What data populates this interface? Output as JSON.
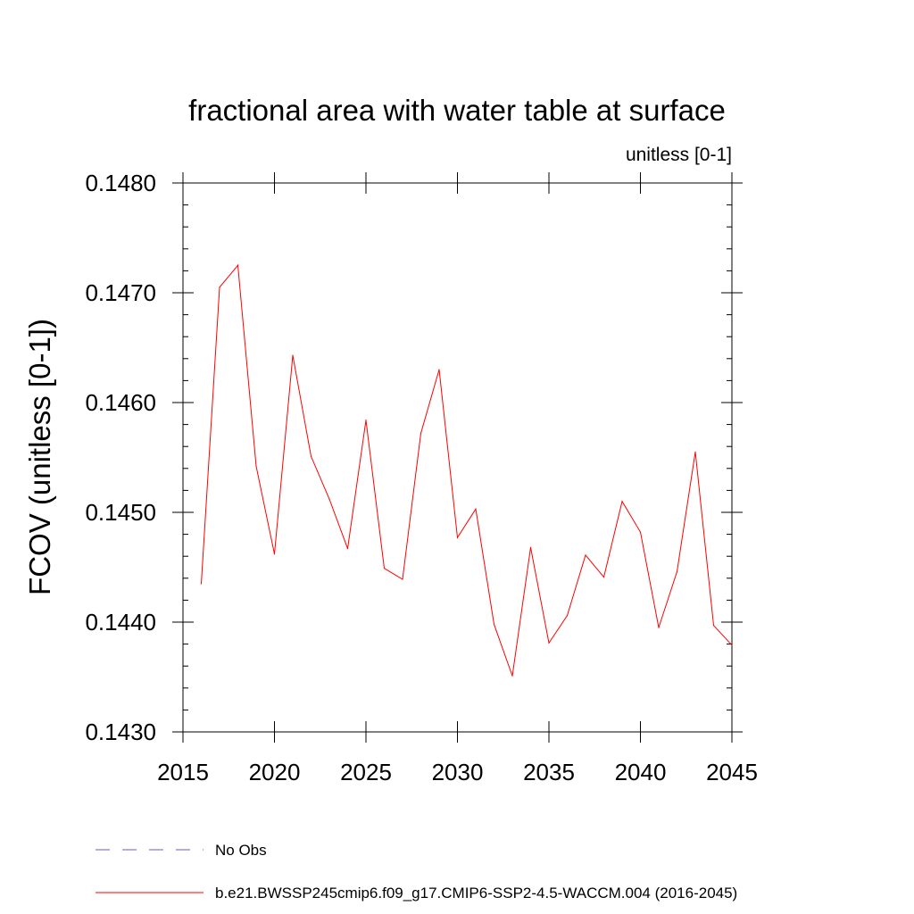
{
  "chart_data": {
    "type": "line",
    "title": "fractional area with water table at surface",
    "subtitle": "unitless [0-1]",
    "xlabel": "",
    "ylabel": "FCOV  (unitless [0-1])",
    "xlim": [
      2015,
      2045
    ],
    "ylim": [
      0.143,
      0.148
    ],
    "x_ticks": [
      2015,
      2020,
      2025,
      2030,
      2035,
      2040,
      2045
    ],
    "x_tick_labels": [
      "2015",
      "2020",
      "2025",
      "2030",
      "2035",
      "2040",
      "2045"
    ],
    "y_ticks": [
      0.143,
      0.144,
      0.145,
      0.146,
      0.147,
      0.148
    ],
    "y_tick_labels": [
      "0.1430",
      "0.1440",
      "0.1450",
      "0.1460",
      "0.1470",
      "0.1480"
    ],
    "grid": false,
    "legend_position": "bottom",
    "series": [
      {
        "name": "b.e21.BWSSP245cmip6.f09_g17.CMIP6-SSP2-4.5-WACCM.004 (2016-2045)",
        "color": "#ff0000",
        "style": "solid",
        "x": [
          2016,
          2017,
          2018,
          2019,
          2020,
          2021,
          2022,
          2023,
          2024,
          2025,
          2026,
          2027,
          2028,
          2029,
          2030,
          2031,
          2032,
          2033,
          2034,
          2035,
          2036,
          2037,
          2038,
          2039,
          2040,
          2041,
          2042,
          2043,
          2044,
          2045
        ],
        "values": [
          0.14435,
          0.14705,
          0.14725,
          0.14542,
          0.14462,
          0.14643,
          0.14551,
          0.14512,
          0.14467,
          0.14584,
          0.14449,
          0.14439,
          0.14572,
          0.1463,
          0.14477,
          0.14503,
          0.14398,
          0.14351,
          0.14468,
          0.14381,
          0.14406,
          0.14461,
          0.14441,
          0.1451,
          0.14482,
          0.14395,
          0.14446,
          0.14555,
          0.14397,
          0.14379
        ]
      }
    ],
    "legend": [
      {
        "label": "No Obs",
        "color": "#6a5acd",
        "style": "dashed"
      },
      {
        "label": "b.e21.BWSSP245cmip6.f09_g17.CMIP6-SSP2-4.5-WACCM.004 (2016-2045)",
        "color": "#ff0000",
        "style": "solid"
      }
    ]
  }
}
